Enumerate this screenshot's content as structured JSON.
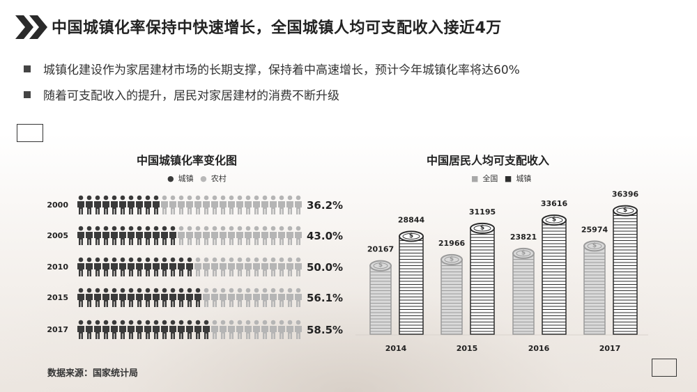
{
  "title": "中国城镇化率保持中快速增长，全国城镇人均可支配收入接近4万",
  "bullets": [
    "城镇化建设作为家居建材市场的长期支撑，保持着中高速增长，预计今年城镇化率将达60%",
    "随着可支配收入的提升，居民对家居建材的消费不断升级"
  ],
  "source": "数据来源：国家统计局",
  "colors": {
    "dark": "#3a3a3a",
    "light": "#b8b8b8",
    "text": "#222222"
  },
  "chart_data": [
    {
      "type": "bar",
      "title": "中国城镇化率变化图",
      "legend": [
        "城镇",
        "农村"
      ],
      "categories": [
        "2000",
        "2005",
        "2010",
        "2015",
        "2017"
      ],
      "value_labels": [
        "36.2%",
        "43.0%",
        "50.0%",
        "56.1%",
        "58.5%"
      ],
      "series": [
        {
          "name": "城镇",
          "values": [
            36.2,
            43.0,
            50.0,
            56.1,
            58.5
          ]
        },
        {
          "name": "农村",
          "values": [
            63.8,
            57.0,
            50.0,
            43.9,
            41.5
          ]
        }
      ],
      "ylim": [
        0,
        100
      ]
    },
    {
      "type": "bar",
      "title": "中国居民人均可支配收入",
      "legend": [
        "全国",
        "城镇"
      ],
      "categories": [
        "2014",
        "2015",
        "2016",
        "2017"
      ],
      "series": [
        {
          "name": "全国",
          "values": [
            20167,
            21966,
            23821,
            25974
          ],
          "labels": [
            "20167",
            "21966",
            "23821",
            "25974"
          ]
        },
        {
          "name": "城镇",
          "values": [
            28844,
            31195,
            33616,
            36396
          ],
          "labels": [
            "28844",
            "31195",
            "33616",
            "36396"
          ]
        }
      ],
      "ylim": [
        0,
        40000
      ]
    }
  ]
}
